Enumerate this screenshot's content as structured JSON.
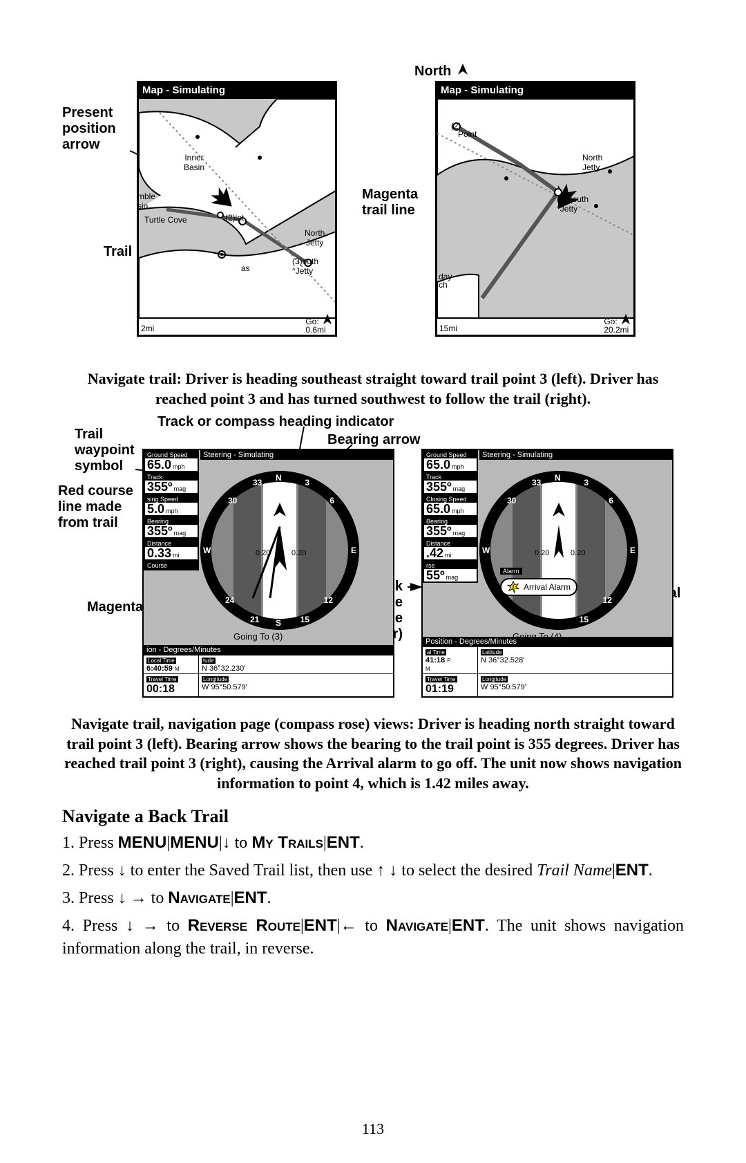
{
  "page_number": "113",
  "north_label": "North",
  "callouts_fig1": {
    "present_position": "Present\nposition\narrow",
    "trail_point": "Trail point",
    "north": "North",
    "magenta_trail": "Magenta\ntrail line"
  },
  "map_left": {
    "title": "Map - Simulating",
    "scale": "2mi",
    "go_label": "Go:",
    "go_dist": "0.6mi",
    "labels": {
      "inner_basin": "Inner\nBasin",
      "turtle_cove": "Turtle Cove",
      "mble_sin": "mble\nsin",
      "pt2": "(2)int",
      "north_jetty": "North\nJetty",
      "pt3": "(3)outh\n°Jetty",
      "as": "as"
    }
  },
  "map_right": {
    "title": "Map - Simulating",
    "scale": "15mi",
    "go_label": "Go:",
    "go_dist": "20.2mi",
    "labels": {
      "pt2": "(2)",
      "point": "Point",
      "north_jetty": "North\nJetty",
      "pt3": "(3)South\n°Jetty",
      "day": "day",
      "ch": "ch"
    }
  },
  "caption1": "Navigate trail: Driver is heading southeast straight toward trail point 3 (left). Driver has reached point 3 and has turned southwest to follow the trail (right).",
  "callouts_fig2": {
    "track_heading": "Track or compass heading indicator",
    "bearing_arrow": "Bearing arrow",
    "trail_wp": "Trail\nwaypoint\nsymbol",
    "red_course": "Red course\nline made\nfrom trail",
    "magenta_new": "Magenta new\ntrail",
    "cross_track": "Cross track\nerror range\n(off course\nindicator)",
    "arrival_alarm": "Arrival\nalarm"
  },
  "gauge_left": {
    "steering_bar": "Steering - Simulating",
    "rows": [
      {
        "label": "Ground Speed",
        "value": "65.0",
        "unit": "mph"
      },
      {
        "label": "Track",
        "value": "355º",
        "unit": "mag"
      },
      {
        "label": "sing Speed",
        "value": "5.0",
        "unit": "mph"
      },
      {
        "label": "Bearing",
        "value": "355º",
        "unit": "mag"
      },
      {
        "label": "Distance",
        "value": "0.33",
        "unit": "mi"
      },
      {
        "label": "Course",
        "value": " ",
        "unit": ""
      }
    ],
    "going_to": "Going To (3)",
    "pos_bar": "ion - Degrees/Minutes",
    "local_tm_lbl": "Local Time",
    "local_tm": "6:40:59",
    "lat_lbl": "tude",
    "lat": "N 36°32.230'",
    "travel_lbl": "Travel Time",
    "travel": "00:18",
    "lon_lbl": "Longitude",
    "lon": "W 95°50.579'",
    "ticks": {
      "N": "N",
      "S": "S",
      "E": "E",
      "W": "W",
      "n30": "30",
      "n33": "33",
      "n3": "3",
      "n6": "6",
      "n12": "12",
      "n15": "15",
      "n21": "21",
      "n24": "24"
    },
    "cdi": {
      "l": "0.20",
      "r": "0.20"
    }
  },
  "gauge_right": {
    "steering_bar": "Steering - Simulating",
    "rows": [
      {
        "label": "Ground Speed",
        "value": "65.0",
        "unit": "mph"
      },
      {
        "label": "Track",
        "value": "355º",
        "unit": "mag"
      },
      {
        "label": "Closing Speed",
        "value": "65.0",
        "unit": "mph"
      },
      {
        "label": "Bearing",
        "value": "355º",
        "unit": "mag"
      },
      {
        "label": "Distance",
        "value": ".42",
        "unit": "mi"
      },
      {
        "label": "rse",
        "value": "55º",
        "unit": "mag"
      }
    ],
    "going_to": "Going To (4)",
    "pos_bar": "Position - Degrees/Minutes",
    "local_tm_lbl": "al Time",
    "local_tm": "41:18",
    "lat_lbl": "Latitude",
    "lat": "N 36°32.528'",
    "travel_lbl": "Travel Time",
    "travel": "01:19",
    "lon_lbl": "Longitude",
    "lon": "W 95°50.579'",
    "alarm_lbl": "Alarm",
    "alarm_text": "Arrival Alarm",
    "ticks": {
      "N": "N",
      "E": "E",
      "W": "W",
      "n30": "30",
      "n33": "33",
      "n3": "3",
      "n6": "6",
      "n12": "12",
      "n15": "15"
    },
    "cdi": {
      "l": "0.20",
      "r": "0.20"
    }
  },
  "caption2": "Navigate trail, navigation page (compass rose) views: Driver is heading north straight toward trail point 3 (left). Bearing arrow shows the bearing to the trail point is 355 degrees. Driver has reached trail point 3 (right), causing the Arrival alarm to go off. The unit now shows navigation information to point 4, which is 1.42 miles away.",
  "section_heading": "Navigate a Back Trail",
  "step1": {
    "pre": "1. Press ",
    "menu": "MENU",
    "sep": "|",
    "mytrails": "My Trails",
    "ent": "ENT",
    "period": "."
  },
  "step2": {
    "pre": "2. Press ",
    "txt1": " to enter the Saved Trail list, then use ",
    "txt2": " to select the desired ",
    "trail": "Trail Name",
    "ent": "ENT",
    "period": "."
  },
  "step3": {
    "pre": "3. Press ",
    "nav": "Navigate",
    "ent": "ENT",
    "period": ".",
    "to": "to"
  },
  "step4": {
    "pre": "4. Press ",
    "rr": "Reverse Route",
    "ent": "ENT",
    "nav": "Navigate",
    "to": "to",
    "trail_txt": ". The unit shows navigation information along the trail, in reverse."
  }
}
